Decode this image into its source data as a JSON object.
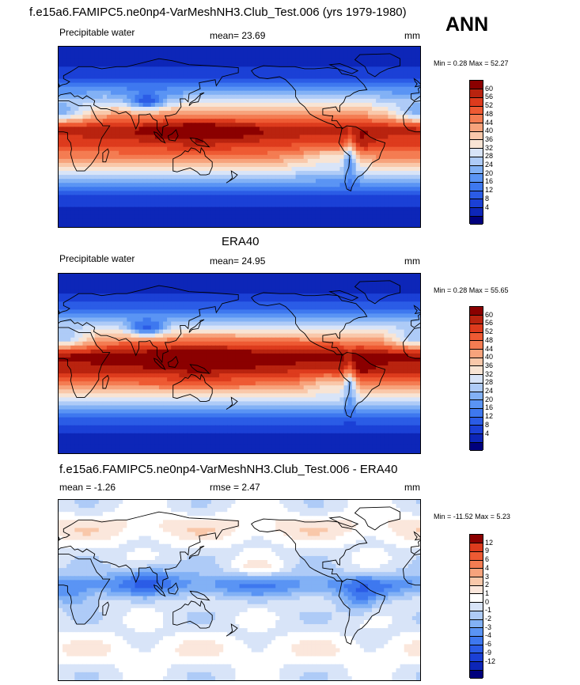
{
  "page_title": "f.e15a6.FAMIPC5.ne0np4-VarMeshNH3.Club_Test.006 (yrs 1979-1980)",
  "season": "ANN",
  "panels": [
    {
      "header_center": "",
      "left": "Precipitable water",
      "mid": "mean=  23.69",
      "right": "mm",
      "minmax": "Min =   0.28 Max =  52.27",
      "colors": [
        "#00007d",
        "#0d26b8",
        "#1b40d6",
        "#2b5ce6",
        "#3e78ef",
        "#5a94f4",
        "#82b1f5",
        "#aecbf7",
        "#d8e4f8",
        "#f8e4d4",
        "#f9c8aa",
        "#f7a37c",
        "#f47c52",
        "#ee5a33",
        "#dd3b1d",
        "#b9230f",
        "#8b0000"
      ],
      "labels": [
        "60",
        "56",
        "52",
        "48",
        "44",
        "40",
        "36",
        "32",
        "28",
        "24",
        "20",
        "16",
        "12",
        "8",
        "4"
      ],
      "mode": "field",
      "intensity": 0.93
    },
    {
      "header_center": "ERA40",
      "left": "Precipitable water",
      "mid": "mean=  24.95",
      "right": "mm",
      "minmax": "Min =   0.28 Max =  55.65",
      "colors": [
        "#00007d",
        "#0d26b8",
        "#1b40d6",
        "#2b5ce6",
        "#3e78ef",
        "#5a94f4",
        "#82b1f5",
        "#aecbf7",
        "#d8e4f8",
        "#f8e4d4",
        "#f9c8aa",
        "#f7a37c",
        "#f47c52",
        "#ee5a33",
        "#dd3b1d",
        "#b9230f",
        "#8b0000"
      ],
      "labels": [
        "60",
        "56",
        "52",
        "48",
        "44",
        "40",
        "36",
        "32",
        "28",
        "24",
        "20",
        "16",
        "12",
        "8",
        "4"
      ],
      "mode": "field",
      "intensity": 1.0
    },
    {
      "header_center": "f.e15a6.FAMIPC5.ne0np4-VarMeshNH3.Club_Test.006 - ERA40",
      "left": "mean =  -1.26",
      "mid": "rmse =   2.47",
      "right": "mm",
      "minmax": "Min = -11.52 Max =   5.23",
      "colors": [
        "#00007d",
        "#0d26b8",
        "#1b40d6",
        "#2b5ce6",
        "#3e78ef",
        "#5a94f4",
        "#82b1f5",
        "#aecbf7",
        "#d8e4f8",
        "#ffffff",
        "#fbe7dc",
        "#f9c8aa",
        "#f7a37c",
        "#f47c52",
        "#ee5a33",
        "#dd3b1d",
        "#8b0000"
      ],
      "labels": [
        "12",
        "9",
        "6",
        "4",
        "3",
        "2",
        "1",
        "0",
        "-1",
        "-2",
        "-3",
        "-4",
        "-6",
        "-9",
        "-12"
      ],
      "mode": "diff",
      "intensity": 1.0
    }
  ]
}
